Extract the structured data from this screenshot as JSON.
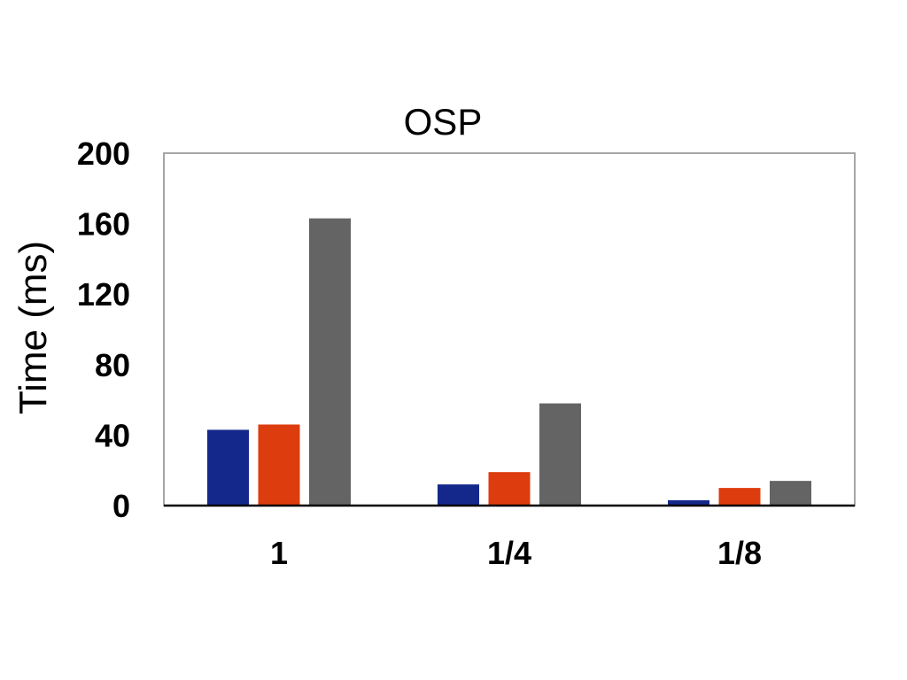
{
  "chart_data": {
    "type": "bar",
    "title": "OSP",
    "xlabel": "",
    "ylabel": "Time (ms)",
    "ylim": [
      0,
      200
    ],
    "yticks": [
      "0",
      "40",
      "80",
      "120",
      "160",
      "200"
    ],
    "categories": [
      "1",
      "1/4",
      "1/8"
    ],
    "grid": false,
    "series": [
      {
        "values": [
          43,
          12,
          3
        ],
        "color": "#13288a"
      },
      {
        "values": [
          46,
          19,
          10
        ],
        "color": "#dc3c0e"
      },
      {
        "values": [
          163,
          58,
          14
        ],
        "color": "#646464"
      }
    ]
  }
}
